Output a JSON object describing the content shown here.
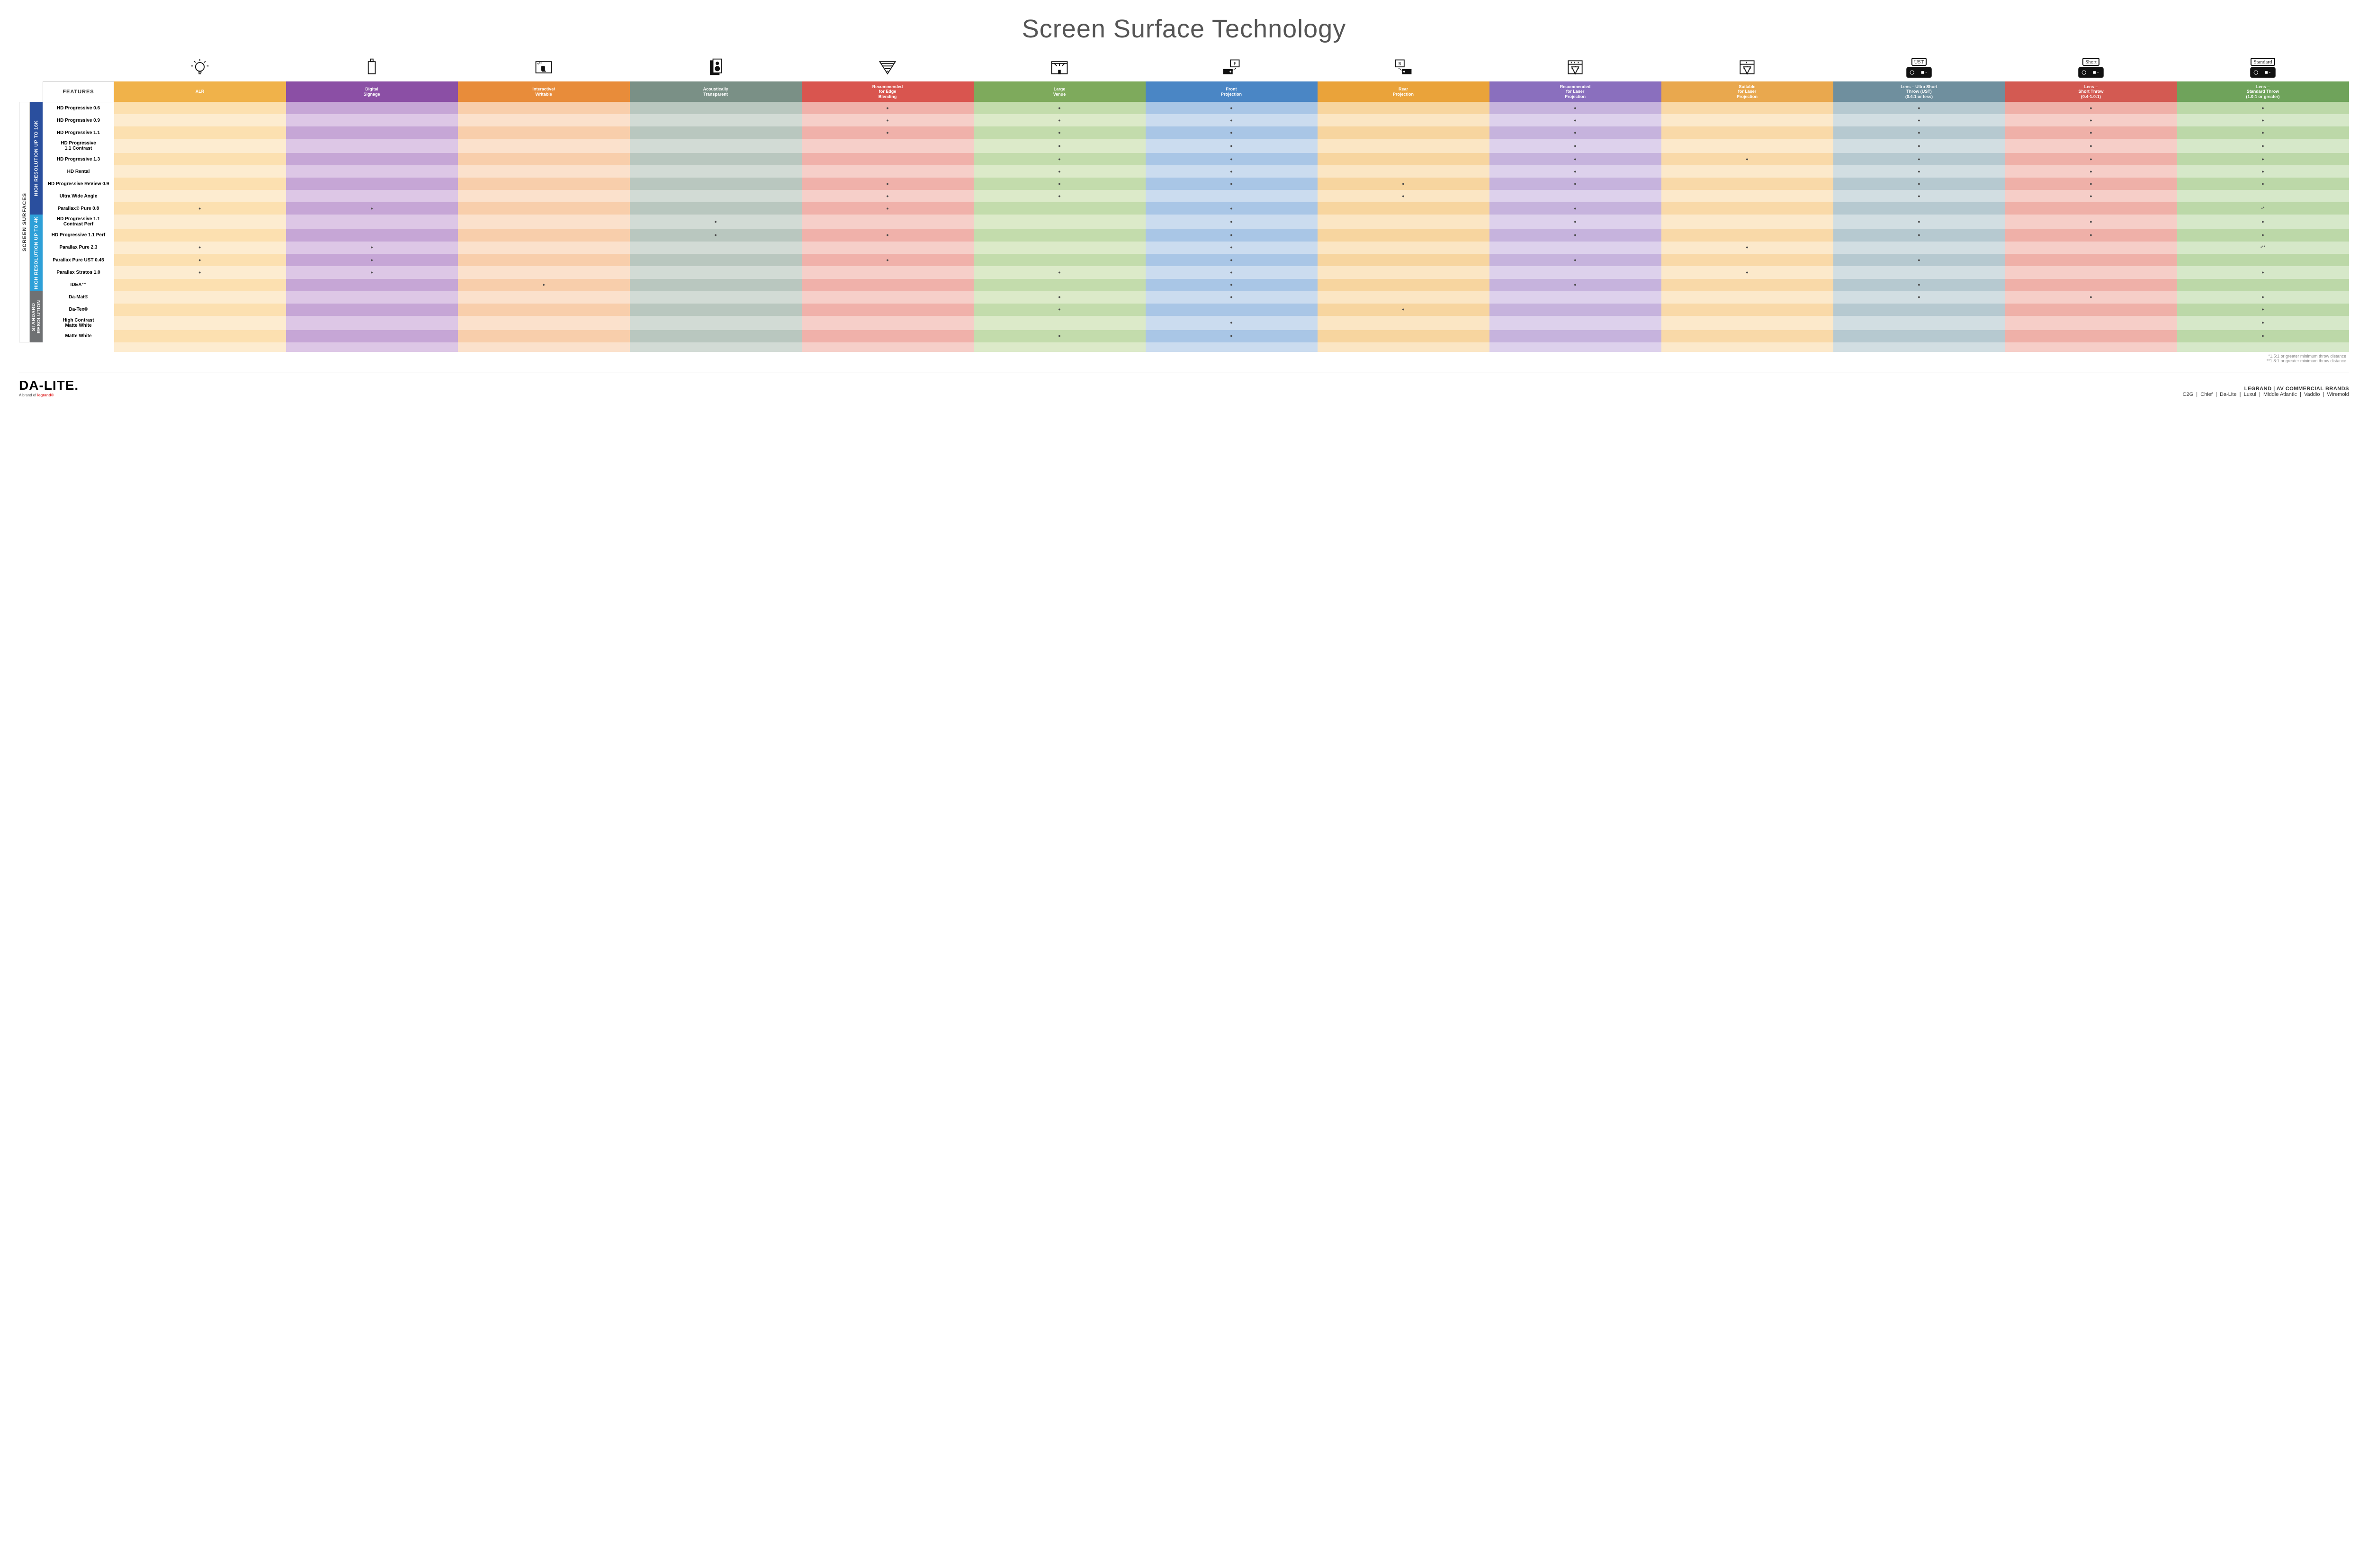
{
  "title": "Screen Surface Technology",
  "colors": {
    "headers": [
      "#f0b24a",
      "#8b4fa5",
      "#e88c3a",
      "#7a9086",
      "#d9554f",
      "#7eaa5c",
      "#4a86c5",
      "#eaa33a",
      "#8a6fbe",
      "#e9a84e",
      "#6f8f9e",
      "#d35a52",
      "#6fa35b"
    ],
    "cells_even": [
      "#fce0b0",
      "#c6a6d6",
      "#f8ceab",
      "#b9c7bf",
      "#f0b1aa",
      "#c3dcac",
      "#a9c6e6",
      "#f7d59f",
      "#c6b3dd",
      "#f9d9a8",
      "#b6c9d0",
      "#efb0a8",
      "#bcd8a8"
    ],
    "cells_odd": [
      "#fdecd0",
      "#ddc7e6",
      "#fbe1cc",
      "#d2dbd5",
      "#f6cfc9",
      "#dceac9",
      "#cbdcef",
      "#fbe6c4",
      "#ddd1ec",
      "#fce9cb",
      "#d2dee2",
      "#f6cec8",
      "#d6e8c9"
    ],
    "cat_16k": "#2a4f9e",
    "cat_4k": "#2ea0d8",
    "cat_std": "#6f7173"
  },
  "columns": [
    {
      "icon": "bulb",
      "label": "ALR"
    },
    {
      "icon": "signage",
      "label": "Digital\nSignage"
    },
    {
      "icon": "touch",
      "label": "Interactive/\nWritable"
    },
    {
      "icon": "speaker",
      "label": "Acoustically\nTransparent"
    },
    {
      "icon": "blend",
      "label": "Recommended\nfor Edge\nBlending"
    },
    {
      "icon": "venue",
      "label": "Large\nVenue"
    },
    {
      "icon": "front",
      "label": "Front\nProjection"
    },
    {
      "icon": "rear",
      "label": "Rear\nProjection"
    },
    {
      "icon": "laser-rec",
      "label": "Recommended\nfor Laser\nProjection"
    },
    {
      "icon": "laser-suit",
      "label": "Suitable\nfor Laser\nProjection"
    },
    {
      "icon": "lens-ust",
      "label": "Lens – Ultra Short\nThrow (UST)\n(0.4:1 or less)"
    },
    {
      "icon": "lens-short",
      "label": "Lens –\nShort Throw\n(0.4-1.0:1)"
    },
    {
      "icon": "lens-std",
      "label": "Lens –\nStandard Throw\n(1.0:1 or greater)"
    }
  ],
  "side_label": "SCREEN SURFACES",
  "categories": [
    {
      "key": "cat_16k",
      "label": "HIGH RESOLUTION UP TO 16K",
      "rows": [
        {
          "name": "HD Progressive 0.6",
          "dots": [
            0,
            0,
            0,
            0,
            1,
            1,
            1,
            0,
            1,
            0,
            1,
            1,
            1
          ]
        },
        {
          "name": "HD Progressive 0.9",
          "dots": [
            0,
            0,
            0,
            0,
            1,
            1,
            1,
            0,
            1,
            0,
            1,
            1,
            1
          ]
        },
        {
          "name": "HD Progressive 1.1",
          "dots": [
            0,
            0,
            0,
            0,
            1,
            1,
            1,
            0,
            1,
            0,
            1,
            1,
            1
          ]
        },
        {
          "name": "HD Progressive\n1.1 Contrast",
          "dots": [
            0,
            0,
            0,
            0,
            0,
            1,
            1,
            0,
            1,
            0,
            1,
            1,
            1
          ]
        },
        {
          "name": "HD Progressive 1.3",
          "dots": [
            0,
            0,
            0,
            0,
            0,
            1,
            1,
            0,
            1,
            1,
            1,
            1,
            1
          ]
        },
        {
          "name": "HD Rental",
          "dots": [
            0,
            0,
            0,
            0,
            0,
            1,
            1,
            0,
            1,
            0,
            1,
            1,
            1
          ]
        },
        {
          "name": "HD Progressive ReView 0.9",
          "dots": [
            0,
            0,
            0,
            0,
            1,
            1,
            1,
            1,
            1,
            0,
            1,
            1,
            1
          ]
        },
        {
          "name": "Ultra Wide Angle",
          "dots": [
            0,
            0,
            0,
            0,
            1,
            1,
            0,
            1,
            0,
            0,
            1,
            1,
            0
          ]
        },
        {
          "name": "Parallax® Pure 0.8",
          "dots": [
            1,
            1,
            0,
            0,
            1,
            0,
            1,
            0,
            1,
            0,
            0,
            0,
            "•*"
          ]
        }
      ]
    },
    {
      "key": "cat_4k",
      "label": "HIGH RESOLUTION UP TO 4K",
      "rows": [
        {
          "name": "HD Progressive 1.1\nContrast Perf",
          "dots": [
            0,
            0,
            0,
            1,
            0,
            0,
            1,
            0,
            1,
            0,
            1,
            1,
            1
          ]
        },
        {
          "name": "HD Progressive 1.1 Perf",
          "dots": [
            0,
            0,
            0,
            1,
            1,
            0,
            1,
            0,
            1,
            0,
            1,
            1,
            1
          ]
        },
        {
          "name": "Parallax Pure 2.3",
          "dots": [
            1,
            1,
            0,
            0,
            0,
            0,
            1,
            0,
            0,
            1,
            0,
            0,
            "•**"
          ]
        },
        {
          "name": "Parallax Pure UST 0.45",
          "dots": [
            1,
            1,
            0,
            0,
            1,
            0,
            1,
            0,
            1,
            0,
            1,
            0,
            0
          ]
        },
        {
          "name": "Parallax Stratos 1.0",
          "dots": [
            1,
            1,
            0,
            0,
            0,
            1,
            1,
            0,
            0,
            1,
            0,
            0,
            1
          ]
        },
        {
          "name": "IDEA™",
          "dots": [
            0,
            0,
            1,
            0,
            0,
            0,
            1,
            0,
            1,
            0,
            1,
            0,
            0
          ]
        }
      ]
    },
    {
      "key": "cat_std",
      "label": "STANDARD\nRESOLUTION",
      "rows": [
        {
          "name": "Da-Mat®",
          "dots": [
            0,
            0,
            0,
            0,
            0,
            1,
            1,
            0,
            0,
            0,
            1,
            1,
            1
          ]
        },
        {
          "name": "Da-Tex®",
          "dots": [
            0,
            0,
            0,
            0,
            0,
            1,
            0,
            1,
            0,
            0,
            0,
            0,
            1
          ]
        },
        {
          "name": "High Contrast\nMatte White",
          "dots": [
            0,
            0,
            0,
            0,
            0,
            0,
            1,
            0,
            0,
            0,
            0,
            0,
            1
          ]
        },
        {
          "name": "Matte White",
          "dots": [
            0,
            0,
            0,
            0,
            0,
            1,
            1,
            0,
            0,
            0,
            0,
            0,
            1
          ]
        }
      ]
    }
  ],
  "footnotes": [
    "*1.5:1 or greater minimum throw distance",
    "**1.8:1 or greater minimum throw distance"
  ],
  "footer": {
    "brand": "DA-LITE.",
    "brand_sub_pre": "A brand of ",
    "brand_sub_logo": "legrand®",
    "right_top": "LEGRAND | AV COMMERCIAL BRANDS",
    "right_brands": [
      "C2G",
      "Chief",
      "Da-Lite",
      "Luxul",
      "Middle Atlantic",
      "Vaddio",
      "Wiremold"
    ]
  },
  "features_label": "FEATURES",
  "lens_badges": {
    "lens-ust": "UST",
    "lens-short": "Short",
    "lens-std": "Standard"
  }
}
